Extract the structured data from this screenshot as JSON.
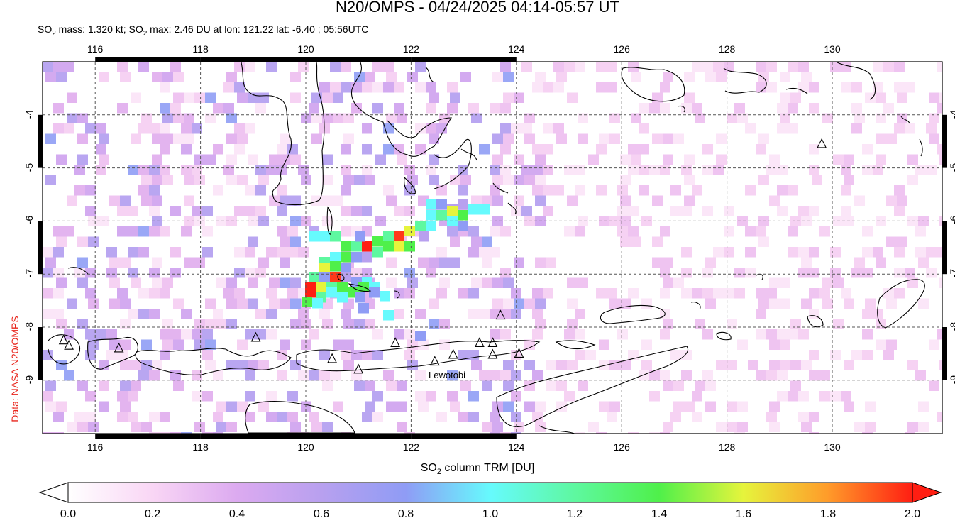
{
  "title": "N20/OMPS - 04/24/2025 04:14-05:57 UT",
  "subtitle": {
    "mass_label": "SO",
    "mass_text": " mass: 1.320 kt; SO",
    "max_text": " max: 2.46 DU at lon: 121.22 lat: -6.40 ; 05:56UTC"
  },
  "credit": "Data: NASA N20/OMPS",
  "map": {
    "lon_ticks": [
      "116",
      "118",
      "120",
      "122",
      "124",
      "126",
      "128",
      "130"
    ],
    "lat_ticks": [
      "-4",
      "-5",
      "-6",
      "-7",
      "-8",
      "-9"
    ],
    "lon_range": [
      115.0,
      132.0
    ],
    "lat_range": [
      -3.0,
      -10.0
    ],
    "grid": true,
    "volcano_label": "Lewotobi",
    "volcanoes": [
      {
        "lon": 115.5,
        "lat": -8.35
      },
      {
        "lon": 115.4,
        "lat": -8.25
      },
      {
        "lon": 116.45,
        "lat": -8.4
      },
      {
        "lon": 119.05,
        "lat": -8.2
      },
      {
        "lon": 120.5,
        "lat": -8.6
      },
      {
        "lon": 121.0,
        "lat": -8.8
      },
      {
        "lon": 121.7,
        "lat": -8.3
      },
      {
        "lon": 122.45,
        "lat": -8.65
      },
      {
        "lon": 122.8,
        "lat": -8.52
      },
      {
        "lon": 123.3,
        "lat": -8.3
      },
      {
        "lon": 123.55,
        "lat": -8.3
      },
      {
        "lon": 123.55,
        "lat": -8.52
      },
      {
        "lon": 123.7,
        "lat": -7.78
      },
      {
        "lon": 124.05,
        "lat": -8.5
      },
      {
        "lon": 129.8,
        "lat": -4.55
      }
    ]
  },
  "xlabel_prefix": "SO",
  "xlabel_suffix": " column TRM [DU]",
  "colorbar": {
    "ticks": [
      "0.0",
      "0.2",
      "0.4",
      "0.6",
      "0.8",
      "1.0",
      "1.2",
      "1.4",
      "1.6",
      "1.8",
      "2.0"
    ],
    "stops": [
      "#ffffff",
      "#f9d6f5",
      "#dcaaf0",
      "#b8a0ef",
      "#8f9cf5",
      "#66fafd",
      "#5ef8a0",
      "#4ff04a",
      "#e6f43c",
      "#ff9b2a",
      "#ff1e12"
    ]
  },
  "so2_hotspot": {
    "lon": 121.22,
    "lat": -6.4,
    "value_du": 2.46
  }
}
